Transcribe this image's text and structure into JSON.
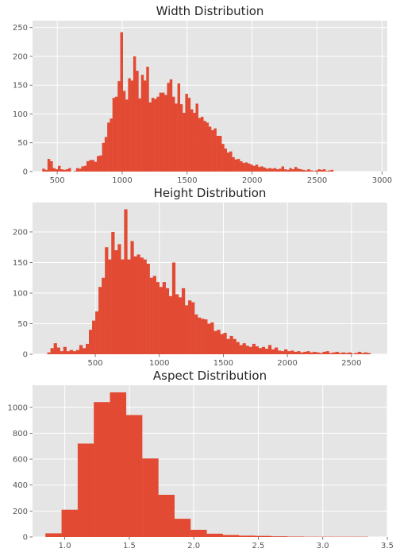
{
  "chart_data": [
    {
      "type": "bar",
      "title": "Width Distribution",
      "xlabel": "",
      "ylabel": "",
      "xlim": [
        310,
        3040
      ],
      "ylim": [
        0,
        262
      ],
      "xticks": [
        500,
        1000,
        1500,
        2000,
        2500,
        3000
      ],
      "yticks": [
        0,
        50,
        100,
        150,
        200,
        250
      ],
      "bar_color": "#e24a33",
      "grid": true,
      "bins": [
        [
          385,
          405,
          5
        ],
        [
          405,
          425,
          3
        ],
        [
          425,
          445,
          22
        ],
        [
          445,
          465,
          18
        ],
        [
          465,
          485,
          6
        ],
        [
          485,
          505,
          4
        ],
        [
          505,
          525,
          10
        ],
        [
          525,
          545,
          4
        ],
        [
          545,
          565,
          3
        ],
        [
          565,
          585,
          4
        ],
        [
          585,
          605,
          6
        ],
        [
          605,
          625,
          0
        ],
        [
          625,
          645,
          1
        ],
        [
          645,
          665,
          6
        ],
        [
          665,
          685,
          5
        ],
        [
          685,
          705,
          9
        ],
        [
          705,
          725,
          10
        ],
        [
          725,
          745,
          18
        ],
        [
          745,
          765,
          20
        ],
        [
          765,
          785,
          20
        ],
        [
          785,
          805,
          17
        ],
        [
          805,
          825,
          27
        ],
        [
          825,
          845,
          28
        ],
        [
          845,
          865,
          50
        ],
        [
          865,
          885,
          60
        ],
        [
          885,
          905,
          85
        ],
        [
          905,
          925,
          92
        ],
        [
          925,
          945,
          128
        ],
        [
          945,
          965,
          130
        ],
        [
          965,
          985,
          157
        ],
        [
          985,
          1005,
          242
        ],
        [
          1005,
          1025,
          140
        ],
        [
          1025,
          1045,
          125
        ],
        [
          1045,
          1065,
          162
        ],
        [
          1065,
          1085,
          158
        ],
        [
          1085,
          1105,
          200
        ],
        [
          1105,
          1125,
          175
        ],
        [
          1125,
          1145,
          127
        ],
        [
          1145,
          1165,
          168
        ],
        [
          1165,
          1185,
          158
        ],
        [
          1185,
          1205,
          182
        ],
        [
          1205,
          1225,
          120
        ],
        [
          1225,
          1245,
          128
        ],
        [
          1245,
          1265,
          126
        ],
        [
          1265,
          1285,
          130
        ],
        [
          1285,
          1305,
          137
        ],
        [
          1305,
          1325,
          137
        ],
        [
          1325,
          1345,
          133
        ],
        [
          1345,
          1365,
          154
        ],
        [
          1365,
          1385,
          160
        ],
        [
          1385,
          1405,
          130
        ],
        [
          1405,
          1425,
          118
        ],
        [
          1425,
          1445,
          153
        ],
        [
          1445,
          1465,
          117
        ],
        [
          1465,
          1485,
          102
        ],
        [
          1485,
          1505,
          135
        ],
        [
          1505,
          1525,
          128
        ],
        [
          1525,
          1545,
          108
        ],
        [
          1545,
          1565,
          102
        ],
        [
          1565,
          1585,
          118
        ],
        [
          1585,
          1605,
          93
        ],
        [
          1605,
          1625,
          95
        ],
        [
          1625,
          1645,
          88
        ],
        [
          1645,
          1665,
          85
        ],
        [
          1665,
          1685,
          78
        ],
        [
          1685,
          1705,
          72
        ],
        [
          1705,
          1725,
          75
        ],
        [
          1725,
          1745,
          62
        ],
        [
          1745,
          1765,
          62
        ],
        [
          1765,
          1785,
          48
        ],
        [
          1785,
          1805,
          40
        ],
        [
          1805,
          1825,
          33
        ],
        [
          1825,
          1845,
          35
        ],
        [
          1845,
          1865,
          25
        ],
        [
          1865,
          1885,
          21
        ],
        [
          1885,
          1905,
          22
        ],
        [
          1905,
          1925,
          18
        ],
        [
          1925,
          1945,
          15
        ],
        [
          1945,
          1965,
          16
        ],
        [
          1965,
          1985,
          14
        ],
        [
          1985,
          2005,
          12
        ],
        [
          2005,
          2025,
          10
        ],
        [
          2025,
          2045,
          12
        ],
        [
          2045,
          2065,
          8
        ],
        [
          2065,
          2085,
          9
        ],
        [
          2085,
          2105,
          7
        ],
        [
          2105,
          2125,
          5
        ],
        [
          2125,
          2145,
          6
        ],
        [
          2145,
          2165,
          5
        ],
        [
          2165,
          2185,
          6
        ],
        [
          2185,
          2205,
          4
        ],
        [
          2205,
          2225,
          5
        ],
        [
          2225,
          2245,
          9
        ],
        [
          2245,
          2265,
          4
        ],
        [
          2265,
          2285,
          3
        ],
        [
          2285,
          2305,
          6
        ],
        [
          2305,
          2325,
          4
        ],
        [
          2325,
          2345,
          8
        ],
        [
          2345,
          2365,
          5
        ],
        [
          2365,
          2385,
          4
        ],
        [
          2385,
          2405,
          3
        ],
        [
          2405,
          2425,
          2
        ],
        [
          2425,
          2445,
          4
        ],
        [
          2445,
          2465,
          2
        ],
        [
          2465,
          2485,
          1
        ],
        [
          2485,
          2505,
          2
        ],
        [
          2505,
          2525,
          4
        ],
        [
          2525,
          2545,
          3
        ],
        [
          2545,
          2565,
          4
        ],
        [
          2565,
          2585,
          1
        ],
        [
          2585,
          2605,
          2
        ],
        [
          2605,
          2625,
          3
        ]
      ]
    },
    {
      "type": "bar",
      "title": "Height Distribution",
      "xlabel": "",
      "ylabel": "",
      "xlim": [
        10,
        2780
      ],
      "ylim": [
        0,
        248
      ],
      "xticks": [
        500,
        1000,
        1500,
        2000,
        2500
      ],
      "yticks": [
        0,
        50,
        100,
        150,
        200
      ],
      "bar_color": "#e24a33",
      "grid": true,
      "bins": [
        [
          125,
          150,
          3
        ],
        [
          150,
          175,
          10
        ],
        [
          175,
          200,
          18
        ],
        [
          200,
          225,
          11
        ],
        [
          225,
          250,
          5
        ],
        [
          250,
          275,
          12
        ],
        [
          275,
          300,
          5
        ],
        [
          300,
          325,
          7
        ],
        [
          325,
          350,
          5
        ],
        [
          350,
          375,
          7
        ],
        [
          375,
          400,
          15
        ],
        [
          400,
          425,
          10
        ],
        [
          425,
          450,
          17
        ],
        [
          450,
          475,
          40
        ],
        [
          475,
          500,
          55
        ],
        [
          500,
          525,
          70
        ],
        [
          525,
          550,
          110
        ],
        [
          550,
          575,
          125
        ],
        [
          575,
          600,
          175
        ],
        [
          600,
          625,
          155
        ],
        [
          625,
          650,
          200
        ],
        [
          650,
          675,
          170
        ],
        [
          675,
          700,
          180
        ],
        [
          700,
          725,
          155
        ],
        [
          725,
          750,
          237
        ],
        [
          750,
          775,
          155
        ],
        [
          775,
          800,
          185
        ],
        [
          800,
          825,
          160
        ],
        [
          825,
          850,
          163
        ],
        [
          850,
          875,
          158
        ],
        [
          875,
          900,
          155
        ],
        [
          900,
          925,
          148
        ],
        [
          925,
          950,
          125
        ],
        [
          950,
          975,
          128
        ],
        [
          975,
          1000,
          118
        ],
        [
          1000,
          1025,
          110
        ],
        [
          1025,
          1050,
          118
        ],
        [
          1050,
          1075,
          108
        ],
        [
          1075,
          1100,
          95
        ],
        [
          1100,
          1125,
          150
        ],
        [
          1125,
          1150,
          98
        ],
        [
          1150,
          1175,
          93
        ],
        [
          1175,
          1200,
          108
        ],
        [
          1200,
          1225,
          80
        ],
        [
          1225,
          1250,
          88
        ],
        [
          1250,
          1275,
          85
        ],
        [
          1275,
          1300,
          65
        ],
        [
          1300,
          1325,
          60
        ],
        [
          1325,
          1350,
          58
        ],
        [
          1350,
          1375,
          57
        ],
        [
          1375,
          1400,
          50
        ],
        [
          1400,
          1425,
          52
        ],
        [
          1425,
          1450,
          38
        ],
        [
          1450,
          1475,
          40
        ],
        [
          1475,
          1500,
          33
        ],
        [
          1500,
          1525,
          35
        ],
        [
          1525,
          1550,
          25
        ],
        [
          1550,
          1575,
          30
        ],
        [
          1575,
          1600,
          25
        ],
        [
          1600,
          1625,
          20
        ],
        [
          1625,
          1650,
          15
        ],
        [
          1650,
          1675,
          18
        ],
        [
          1675,
          1700,
          14
        ],
        [
          1700,
          1725,
          12
        ],
        [
          1725,
          1750,
          17
        ],
        [
          1750,
          1775,
          13
        ],
        [
          1775,
          1800,
          10
        ],
        [
          1800,
          1825,
          12
        ],
        [
          1825,
          1850,
          9
        ],
        [
          1850,
          1875,
          15
        ],
        [
          1875,
          1900,
          8
        ],
        [
          1900,
          1925,
          11
        ],
        [
          1925,
          1950,
          6
        ],
        [
          1950,
          1975,
          5
        ],
        [
          1975,
          2000,
          8
        ],
        [
          2000,
          2025,
          5
        ],
        [
          2025,
          2050,
          6
        ],
        [
          2050,
          2075,
          4
        ],
        [
          2075,
          2100,
          5
        ],
        [
          2100,
          2125,
          3
        ],
        [
          2125,
          2150,
          4
        ],
        [
          2150,
          2175,
          5
        ],
        [
          2175,
          2200,
          3
        ],
        [
          2200,
          2225,
          4
        ],
        [
          2225,
          2250,
          3
        ],
        [
          2250,
          2275,
          2
        ],
        [
          2275,
          2300,
          4
        ],
        [
          2300,
          2325,
          5
        ],
        [
          2325,
          2350,
          2
        ],
        [
          2350,
          2375,
          3
        ],
        [
          2375,
          2400,
          4
        ],
        [
          2400,
          2425,
          2
        ],
        [
          2425,
          2450,
          3
        ],
        [
          2450,
          2475,
          2
        ],
        [
          2475,
          2500,
          3
        ],
        [
          2500,
          2525,
          1
        ],
        [
          2525,
          2550,
          2
        ],
        [
          2550,
          2575,
          4
        ],
        [
          2575,
          2600,
          2
        ],
        [
          2600,
          2625,
          3
        ],
        [
          2625,
          2650,
          2
        ]
      ]
    },
    {
      "type": "bar",
      "title": "Aspect Distribution",
      "xlabel": "",
      "ylabel": "",
      "xlim": [
        0.75,
        3.5
      ],
      "ylim": [
        0,
        1170
      ],
      "xticks": [
        1.0,
        1.5,
        2.0,
        2.5,
        3.0,
        3.5
      ],
      "yticks": [
        0,
        200,
        400,
        600,
        800,
        1000
      ],
      "bar_color": "#e24a33",
      "grid": true,
      "bins": [
        [
          0.85,
          0.975,
          28
        ],
        [
          0.975,
          1.1,
          210
        ],
        [
          1.1,
          1.225,
          720
        ],
        [
          1.225,
          1.35,
          1040
        ],
        [
          1.35,
          1.475,
          1115
        ],
        [
          1.475,
          1.6,
          940
        ],
        [
          1.6,
          1.725,
          605
        ],
        [
          1.725,
          1.85,
          325
        ],
        [
          1.85,
          1.975,
          140
        ],
        [
          1.975,
          2.1,
          55
        ],
        [
          2.1,
          2.225,
          25
        ],
        [
          2.225,
          2.35,
          15
        ],
        [
          2.35,
          2.475,
          10
        ],
        [
          2.475,
          2.6,
          8
        ],
        [
          2.6,
          2.725,
          5
        ],
        [
          2.725,
          2.85,
          3
        ],
        [
          2.85,
          2.975,
          2
        ],
        [
          2.975,
          3.1,
          2
        ],
        [
          3.1,
          3.225,
          2
        ],
        [
          3.225,
          3.35,
          2
        ]
      ]
    }
  ]
}
